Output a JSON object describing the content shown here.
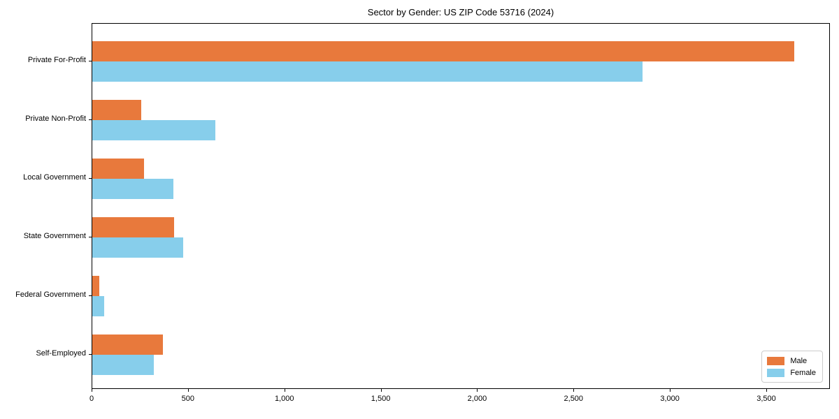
{
  "chart_data": {
    "type": "bar",
    "orientation": "horizontal",
    "title": "Sector by Gender: US ZIP Code 53716 (2024)",
    "categories": [
      "Private For-Profit",
      "Private Non-Profit",
      "Local Government",
      "State Government",
      "Federal Government",
      "Self-Employed"
    ],
    "series": [
      {
        "name": "Male",
        "color": "#e8793c",
        "values": [
          3640,
          255,
          270,
          425,
          35,
          365
        ]
      },
      {
        "name": "Female",
        "color": "#87ceeb",
        "values": [
          2855,
          640,
          420,
          470,
          60,
          320
        ]
      }
    ],
    "xlim": [
      0,
      3830
    ],
    "xticks": [
      0,
      500,
      1000,
      1500,
      2000,
      2500,
      3000,
      3500
    ],
    "xtick_labels": [
      "0",
      "500",
      "1,000",
      "1,500",
      "2,000",
      "2,500",
      "3,000",
      "3,500"
    ],
    "grid": false,
    "legend": {
      "position": "lower right"
    },
    "colors": {
      "axis": "#000000",
      "legend_border": "#cccccc",
      "background": "#ffffff"
    }
  }
}
